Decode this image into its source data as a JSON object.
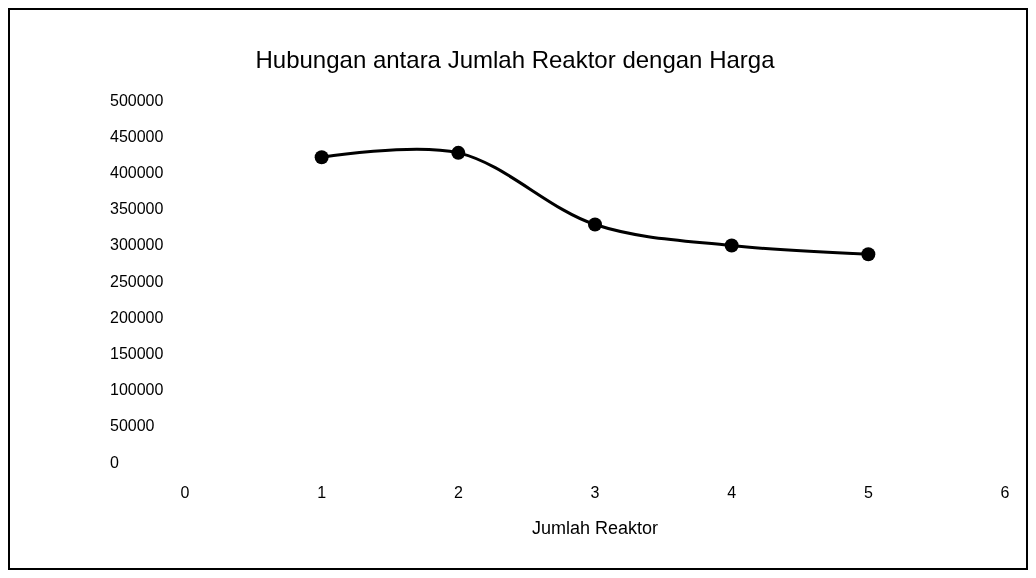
{
  "chart_data": {
    "type": "line",
    "title": "Hubungan antara Jumlah Reaktor dengan Harga",
    "xlabel": "Jumlah Reaktor",
    "x": [
      1,
      2,
      3,
      4,
      5
    ],
    "series": [
      {
        "color": "#000000",
        "values": [
          421000,
          427000,
          328000,
          299000,
          287000
        ]
      }
    ],
    "xlim": [
      0,
      6
    ],
    "xticks": [
      0,
      1,
      2,
      3,
      4,
      5,
      6
    ],
    "ylim": [
      0,
      500000
    ],
    "yticks": [
      0,
      50000,
      100000,
      150000,
      200000,
      250000,
      300000,
      350000,
      400000,
      450000,
      500000
    ],
    "marker": "circle",
    "line_style": "solid"
  }
}
